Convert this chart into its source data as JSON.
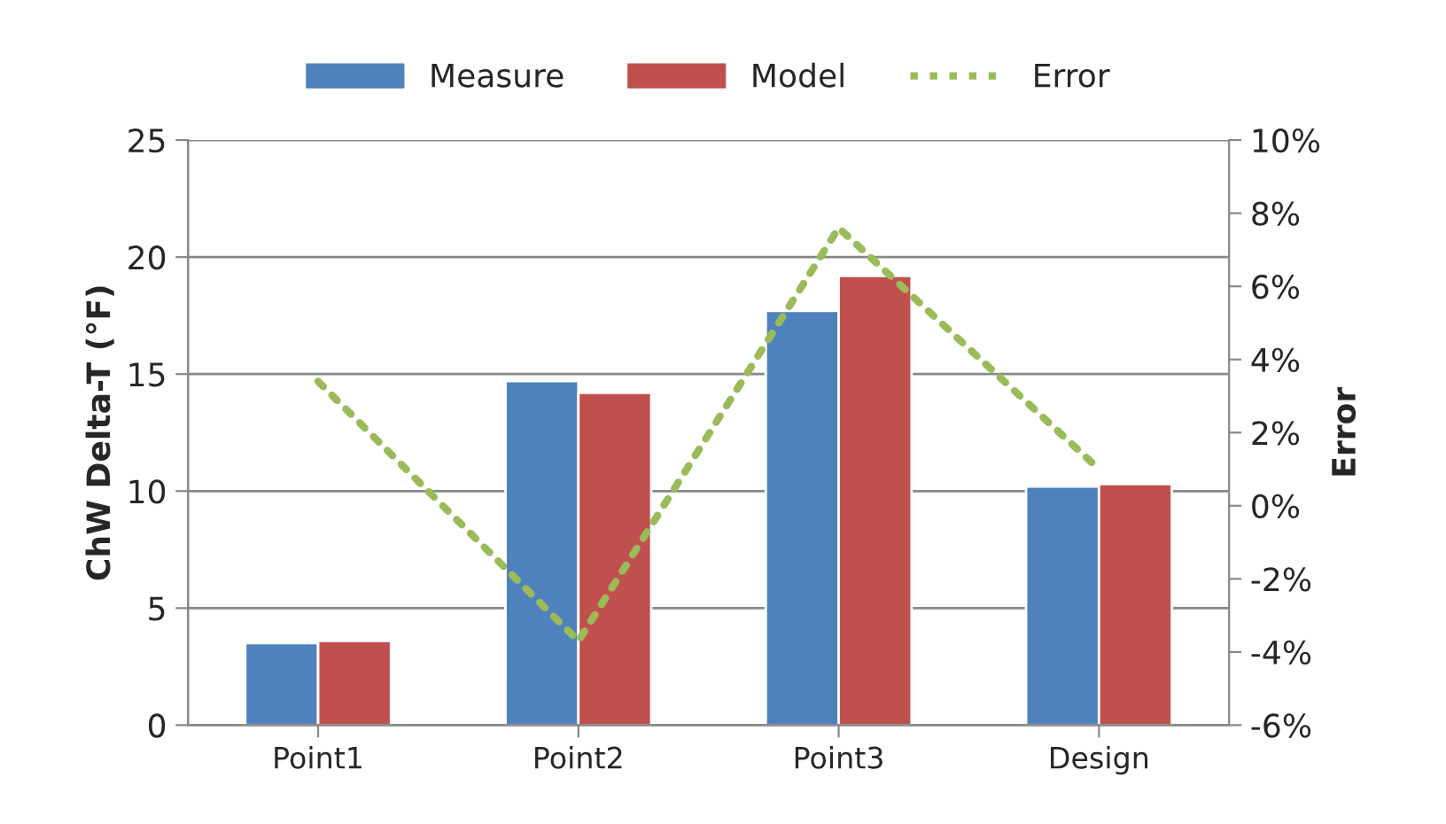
{
  "chart_data": {
    "type": "bar",
    "categories": [
      "Point1",
      "Point2",
      "Point3",
      "Design"
    ],
    "series": [
      {
        "name": "Measure",
        "color": "#4f81bd",
        "values": [
          3.5,
          14.7,
          17.7,
          10.2
        ]
      },
      {
        "name": "Model",
        "color": "#c0504d",
        "values": [
          3.6,
          14.2,
          19.2,
          10.3
        ]
      },
      {
        "name": "Error",
        "type": "line",
        "axis": "y2",
        "color": "#9bbb59",
        "line_style": "dotted",
        "values": [
          3.4,
          -3.7,
          7.6,
          1.0
        ]
      }
    ],
    "ylabel": "ChW Delta-T (°F)",
    "y2label": "Error",
    "ylim": [
      0,
      25
    ],
    "yticks": [
      0,
      5,
      10,
      15,
      20,
      25
    ],
    "y2lim": [
      -6,
      10
    ],
    "y2ticks": [
      {
        "value": -6,
        "label": "-6%"
      },
      {
        "value": -4,
        "label": "-4%"
      },
      {
        "value": -2,
        "label": "-2%"
      },
      {
        "value": 0,
        "label": "0%"
      },
      {
        "value": 2,
        "label": "2%"
      },
      {
        "value": 4,
        "label": "4%"
      },
      {
        "value": 6,
        "label": "6%"
      },
      {
        "value": 8,
        "label": "8%"
      },
      {
        "value": 10,
        "label": "10%"
      }
    ],
    "grid": "y",
    "legend": "top"
  }
}
